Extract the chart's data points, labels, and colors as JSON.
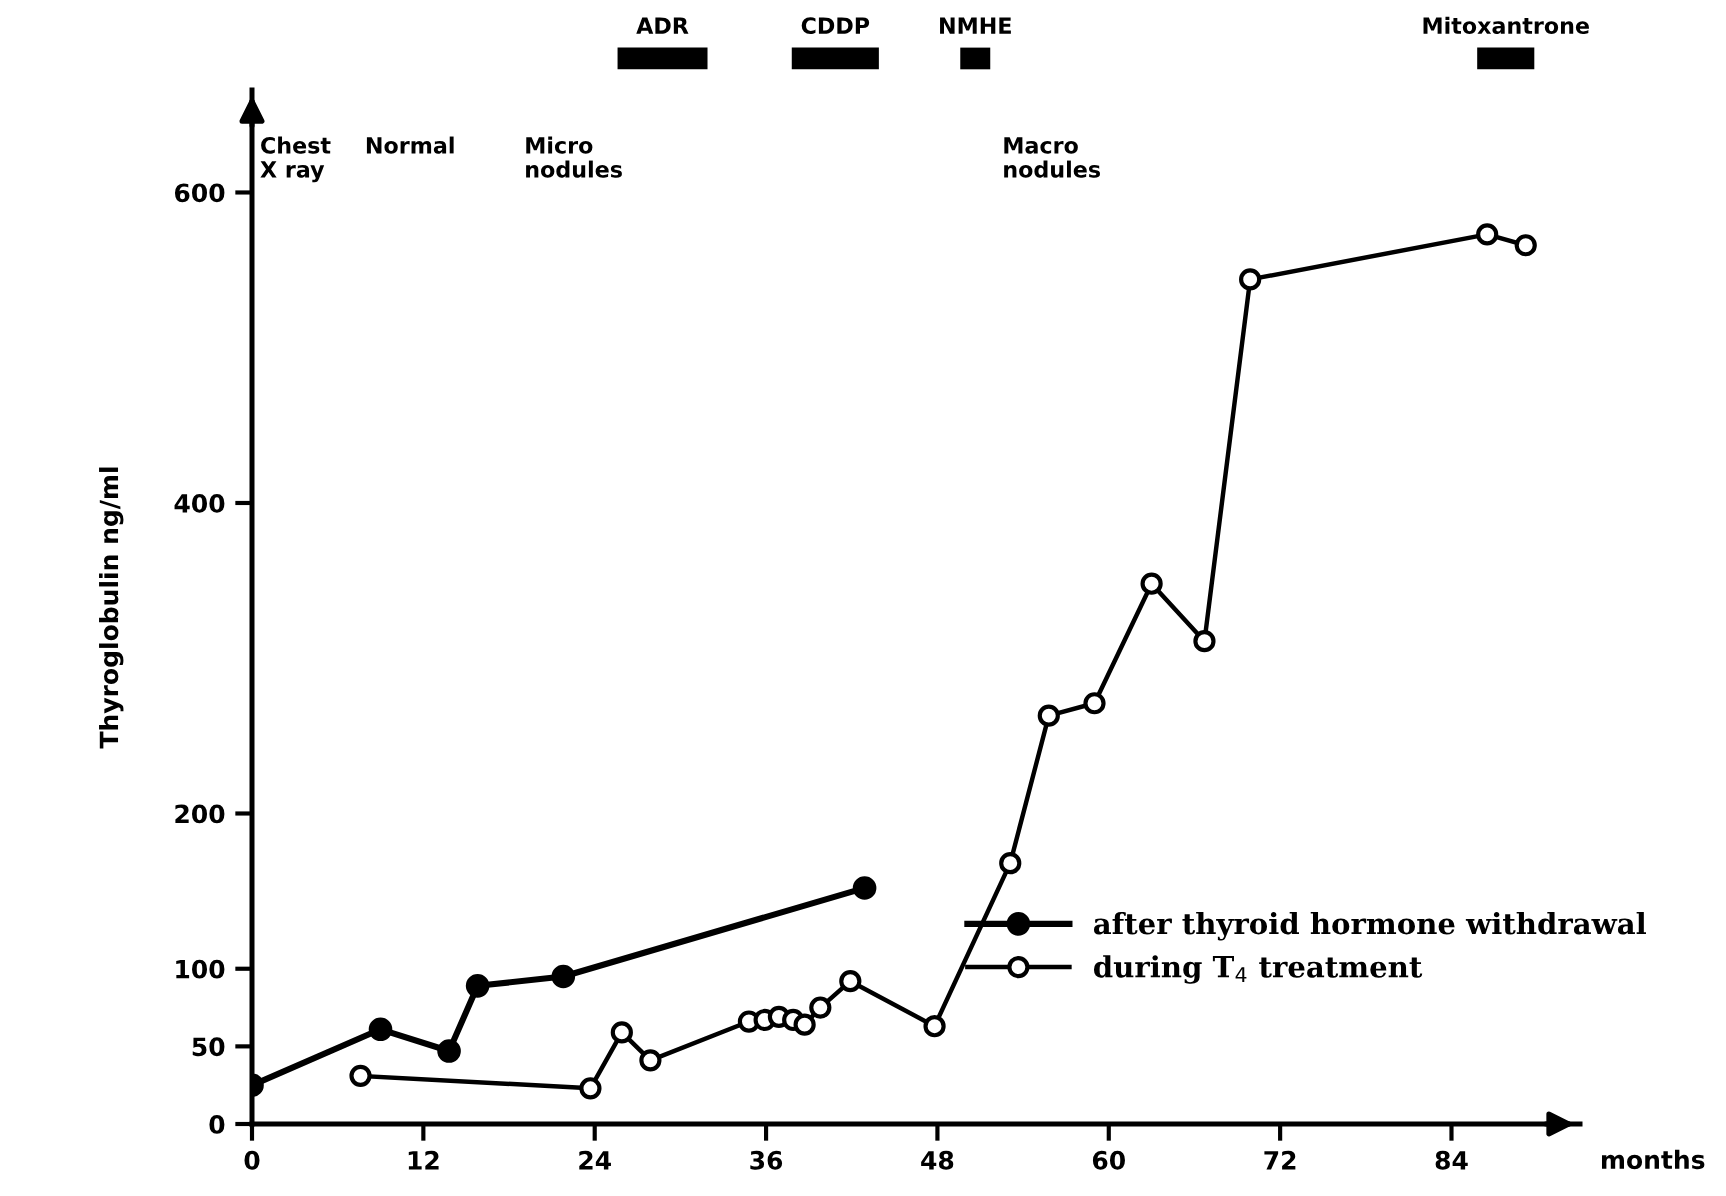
{
  "chart_data": {
    "type": "line",
    "xlabel": "months",
    "ylabel": "Thyroglobulin ng/ml",
    "xlim": [
      0,
      93
    ],
    "ylim": [
      0,
      666
    ],
    "xticks": [
      0,
      12,
      24,
      36,
      48,
      60,
      72,
      84
    ],
    "yticks": [
      0,
      50,
      100,
      200,
      400,
      600
    ],
    "grid": false,
    "legend": "bottom right",
    "marker": "circle",
    "line_style": "solid",
    "series": [
      {
        "name": "after thyroid hormone withdrawal",
        "color": "#000000",
        "x": [
          0,
          9.0,
          13.8,
          15.8,
          21.8,
          42.9
        ],
        "values": [
          25,
          61,
          47,
          89,
          95,
          152
        ]
      },
      {
        "name": "during T$_{4}$ treatment",
        "color": "#000000",
        "x": [
          7.6,
          23.7,
          25.9,
          27.9,
          34.8,
          35.9,
          36.9,
          37.9,
          38.7,
          39.8,
          41.9,
          47.8,
          53.1,
          55.8,
          59.0,
          63.0,
          66.7,
          69.9,
          86.5,
          89.2
        ],
        "values": [
          31,
          23,
          59,
          41,
          66,
          67,
          69,
          67,
          64,
          75,
          92,
          63,
          168,
          263,
          271,
          348,
          311,
          544,
          573,
          566
        ]
      }
    ],
    "annotations": [
      "ADR",
      "CDDP",
      "NMHE",
      "Mitoxantrone",
      "Chest\nX ray",
      "Normal",
      "Micro\nnodules",
      "Macro\nnodules"
    ]
  }
}
